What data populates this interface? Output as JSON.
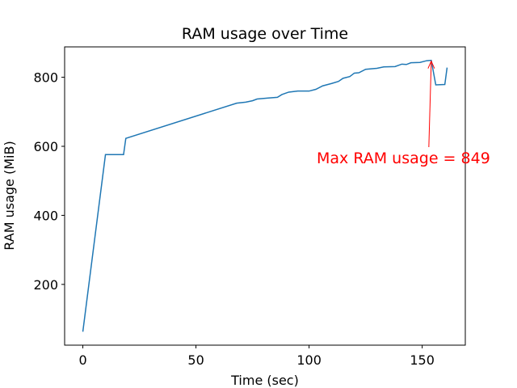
{
  "chart_data": {
    "type": "line",
    "title": "RAM usage over Time",
    "x_label": "Time (sec)",
    "y_label": "RAM usage (MiB)",
    "annotation": "Max RAM usage = 849",
    "annotation_color": "#ff0000",
    "x": [
      0,
      10,
      18,
      19,
      68,
      72,
      75,
      77,
      82,
      86,
      88,
      91,
      95,
      100,
      103,
      106,
      110,
      113,
      115,
      118,
      120,
      122,
      125,
      130,
      133,
      138,
      141,
      143,
      145,
      149,
      152,
      154,
      156,
      160,
      161
    ],
    "series": [
      {
        "color": "#1f77b4",
        "values": [
          63,
          576,
          576,
          623,
          725,
          728,
          732,
          737,
          740,
          742,
          750,
          757,
          760,
          760,
          765,
          775,
          782,
          788,
          797,
          802,
          812,
          813,
          823,
          826,
          830,
          831,
          838,
          837,
          842,
          843,
          848,
          849,
          778,
          779,
          828
        ]
      }
    ],
    "xlim": [
      -8.05,
      169.05
    ],
    "ylim": [
      24,
      888
    ],
    "xticks": [
      0,
      50,
      100,
      150
    ],
    "yticks": [
      200,
      400,
      600,
      800
    ],
    "grid": false
  }
}
